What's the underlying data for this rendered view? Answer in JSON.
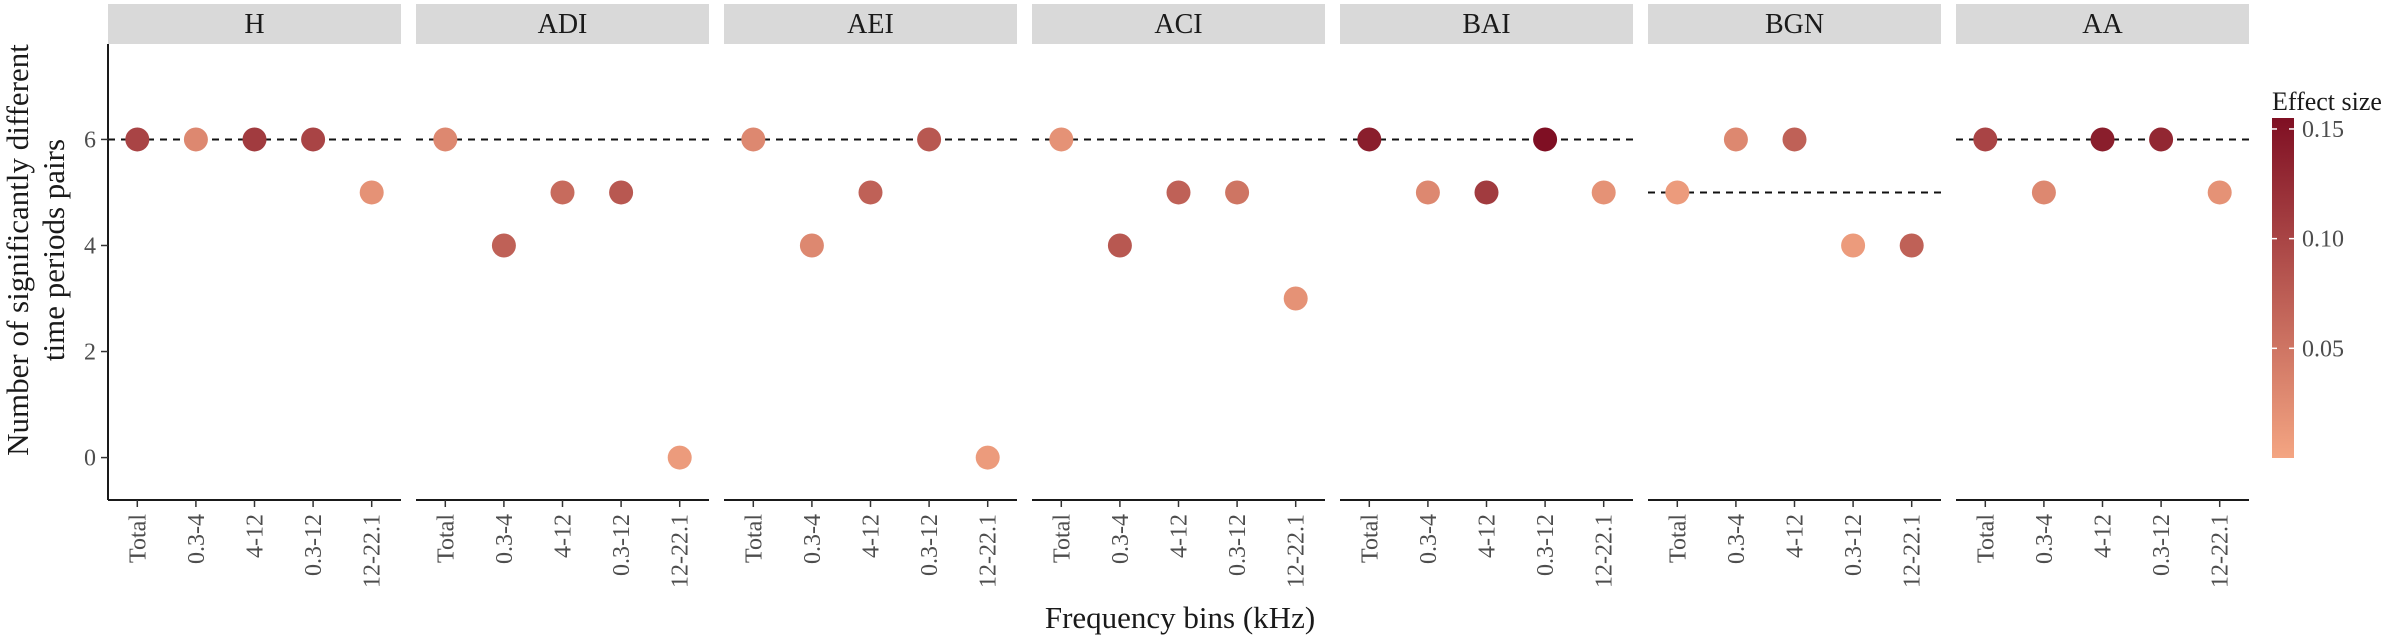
{
  "chart_data": {
    "type": "scatter",
    "ylabel_lines": [
      "Number of significantly different",
      "time periods pairs"
    ],
    "xlabel": "Frequency bins (kHz)",
    "categories": [
      "Total",
      "0.3-4",
      "4-12",
      "0.3-12",
      "12-22.1"
    ],
    "ylim": [
      -0.8,
      7.8
    ],
    "y_ticks": [
      "0",
      "2",
      "4",
      "6"
    ],
    "grid": false,
    "legend": {
      "title": "Effect size",
      "placement": "right",
      "min": 0.0,
      "max": 0.155,
      "ticks": [
        {
          "value": 0.05,
          "label": "0.05"
        },
        {
          "value": 0.1,
          "label": "0.10"
        },
        {
          "value": 0.15,
          "label": "0.15"
        }
      ],
      "color_low": "#f4a582",
      "color_high": "#7f0f23"
    },
    "panels": [
      {
        "name": "H",
        "reference_line": 6,
        "values": [
          6,
          6,
          6,
          6,
          5
        ],
        "effect_sizes": [
          0.1,
          0.03,
          0.11,
          0.1,
          0.02
        ]
      },
      {
        "name": "ADI",
        "reference_line": 6,
        "values": [
          6,
          4,
          5,
          5,
          0
        ],
        "effect_sizes": [
          0.03,
          0.07,
          0.06,
          0.08,
          0.01
        ]
      },
      {
        "name": "AEI",
        "reference_line": 6,
        "values": [
          6,
          4,
          5,
          6,
          0
        ],
        "effect_sizes": [
          0.03,
          0.03,
          0.07,
          0.08,
          0.01
        ]
      },
      {
        "name": "ACI",
        "reference_line": 6,
        "values": [
          6,
          4,
          5,
          5,
          3
        ],
        "effect_sizes": [
          0.02,
          0.08,
          0.07,
          0.05,
          0.02
        ]
      },
      {
        "name": "BAI",
        "reference_line": 6,
        "values": [
          6,
          5,
          5,
          6,
          5
        ],
        "effect_sizes": [
          0.14,
          0.03,
          0.11,
          0.155,
          0.02
        ]
      },
      {
        "name": "BGN",
        "reference_line": 5,
        "values": [
          5,
          6,
          6,
          4,
          4
        ],
        "effect_sizes": [
          0.01,
          0.03,
          0.07,
          0.01,
          0.07
        ]
      },
      {
        "name": "AA",
        "reference_line": 6,
        "values": [
          6,
          5,
          6,
          6,
          5
        ],
        "effect_sizes": [
          0.1,
          0.03,
          0.14,
          0.13,
          0.02
        ]
      }
    ]
  }
}
